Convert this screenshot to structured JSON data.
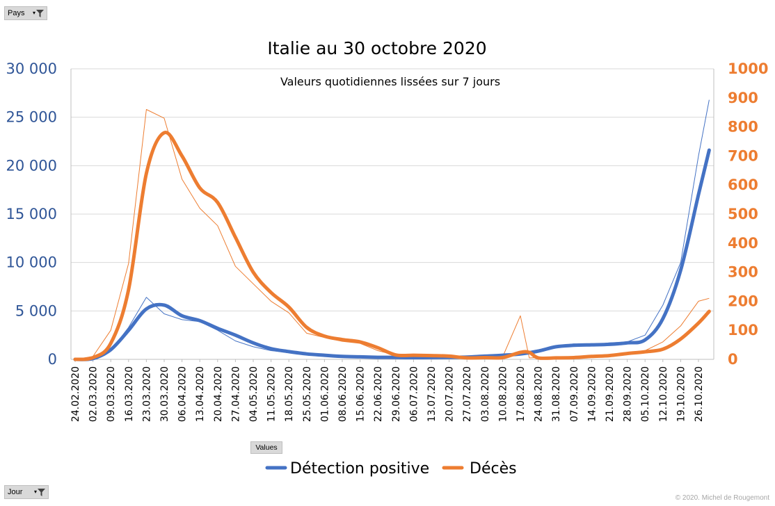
{
  "controls": {
    "pays_label": "Pays",
    "jour_label": "Jour",
    "values_label": "Values",
    "filter_icon": "filter-icon"
  },
  "copyright": "© 2020. Michel de Rougemont",
  "chart_data": {
    "type": "line",
    "title": "Italie au 30 octobre 2020",
    "subtitle": "Valeurs quotidiennes lissées sur 7 jours",
    "left_axis": {
      "range": [
        0,
        30000
      ],
      "ticks": [
        "0",
        "5 000",
        "10 000",
        "15 000",
        "20 000",
        "25 000",
        "30 000"
      ],
      "color": "#2f5597"
    },
    "right_axis": {
      "range": [
        0,
        1000
      ],
      "ticks": [
        "0",
        "100",
        "200",
        "300",
        "400",
        "500",
        "600",
        "700",
        "800",
        "900",
        "1000"
      ],
      "color": "#ed7d31"
    },
    "x_ticks": [
      "24.02.2020",
      "02.03.2020",
      "09.03.2020",
      "16.03.2020",
      "23.03.2020",
      "30.03.2020",
      "06.04.2020",
      "13.04.2020",
      "20.04.2020",
      "27.04.2020",
      "04.05.2020",
      "11.05.2020",
      "18.05.2020",
      "25.05.2020",
      "01.06.2020",
      "08.06.2020",
      "15.06.2020",
      "22.06.2020",
      "29.06.2020",
      "06.07.2020",
      "13.07.2020",
      "20.07.2020",
      "27.07.2020",
      "03.08.2020",
      "10.08.2020",
      "17.08.2020",
      "24.08.2020",
      "31.08.2020",
      "07.09.2020",
      "14.09.2020",
      "21.09.2020",
      "28.09.2020",
      "05.10.2020",
      "12.10.2020",
      "19.10.2020",
      "26.10.2020"
    ],
    "grid": true,
    "legend_position": "bottom",
    "series": [
      {
        "name": "Détection positive",
        "axis": "left",
        "color": "#4472c4",
        "smoothed_by_week": [
          [
            0,
            0
          ],
          [
            1,
            80
          ],
          [
            2,
            1000
          ],
          [
            3,
            3000
          ],
          [
            4,
            5200
          ],
          [
            5,
            5600
          ],
          [
            6,
            4500
          ],
          [
            7,
            4000
          ],
          [
            8,
            3200
          ],
          [
            9,
            2500
          ],
          [
            10,
            1700
          ],
          [
            11,
            1100
          ],
          [
            12,
            800
          ],
          [
            13,
            560
          ],
          [
            14,
            420
          ],
          [
            15,
            300
          ],
          [
            16,
            260
          ],
          [
            17,
            210
          ],
          [
            18,
            200
          ],
          [
            19,
            180
          ],
          [
            20,
            190
          ],
          [
            21,
            210
          ],
          [
            22,
            230
          ],
          [
            23,
            330
          ],
          [
            24,
            420
          ],
          [
            25,
            550
          ],
          [
            26,
            850
          ],
          [
            27,
            1300
          ],
          [
            28,
            1450
          ],
          [
            29,
            1500
          ],
          [
            30,
            1550
          ],
          [
            31,
            1700
          ],
          [
            32,
            2000
          ],
          [
            33,
            4200
          ],
          [
            34,
            9200
          ],
          [
            35,
            17000
          ],
          [
            35.6,
            21600
          ]
        ],
        "daily_by_week": [
          [
            0,
            0
          ],
          [
            1,
            150
          ],
          [
            2,
            900
          ],
          [
            3,
            3300
          ],
          [
            4,
            6400
          ],
          [
            5,
            4700
          ],
          [
            6,
            4100
          ],
          [
            7,
            3900
          ],
          [
            8,
            3000
          ],
          [
            9,
            1900
          ],
          [
            10,
            1300
          ],
          [
            11,
            900
          ],
          [
            12,
            700
          ],
          [
            13,
            500
          ],
          [
            14,
            350
          ],
          [
            15,
            270
          ],
          [
            16,
            250
          ],
          [
            17,
            200
          ],
          [
            18,
            190
          ],
          [
            19,
            170
          ],
          [
            20,
            200
          ],
          [
            21,
            250
          ],
          [
            22,
            260
          ],
          [
            23,
            380
          ],
          [
            24,
            400
          ],
          [
            25,
            650
          ],
          [
            26,
            1000
          ],
          [
            27,
            1400
          ],
          [
            28,
            1600
          ],
          [
            29,
            1500
          ],
          [
            30,
            1700
          ],
          [
            31,
            1800
          ],
          [
            32,
            2500
          ],
          [
            33,
            5600
          ],
          [
            34,
            10000
          ],
          [
            35,
            21000
          ],
          [
            35.6,
            26800
          ]
        ]
      },
      {
        "name": "Décès",
        "axis": "right",
        "color": "#ed7d31",
        "smoothed_by_week": [
          [
            0,
            0
          ],
          [
            1,
            6
          ],
          [
            2,
            55
          ],
          [
            3,
            240
          ],
          [
            4,
            640
          ],
          [
            5,
            780
          ],
          [
            6,
            700
          ],
          [
            7,
            590
          ],
          [
            8,
            540
          ],
          [
            9,
            420
          ],
          [
            10,
            300
          ],
          [
            11,
            230
          ],
          [
            12,
            180
          ],
          [
            13,
            110
          ],
          [
            14,
            80
          ],
          [
            15,
            68
          ],
          [
            16,
            60
          ],
          [
            17,
            40
          ],
          [
            18,
            15
          ],
          [
            19,
            14
          ],
          [
            20,
            13
          ],
          [
            21,
            11
          ],
          [
            22,
            5
          ],
          [
            23,
            6
          ],
          [
            24,
            6
          ],
          [
            25,
            24
          ],
          [
            25.5,
            24
          ],
          [
            26,
            5
          ],
          [
            27,
            5
          ],
          [
            28,
            6
          ],
          [
            29,
            10
          ],
          [
            30,
            13
          ],
          [
            31,
            20
          ],
          [
            32,
            26
          ],
          [
            33,
            35
          ],
          [
            34,
            70
          ],
          [
            35,
            125
          ],
          [
            35.6,
            165
          ]
        ],
        "daily_by_week": [
          [
            0,
            0
          ],
          [
            1,
            10
          ],
          [
            2,
            100
          ],
          [
            3,
            330
          ],
          [
            4,
            860
          ],
          [
            5,
            830
          ],
          [
            6,
            620
          ],
          [
            7,
            520
          ],
          [
            8,
            460
          ],
          [
            9,
            320
          ],
          [
            10,
            260
          ],
          [
            11,
            200
          ],
          [
            12,
            160
          ],
          [
            13,
            90
          ],
          [
            14,
            75
          ],
          [
            15,
            62
          ],
          [
            16,
            55
          ],
          [
            17,
            30
          ],
          [
            18,
            14
          ],
          [
            19,
            14
          ],
          [
            20,
            13
          ],
          [
            21,
            8
          ],
          [
            22,
            4
          ],
          [
            23,
            5
          ],
          [
            24,
            8
          ],
          [
            25,
            150
          ],
          [
            25.5,
            5
          ],
          [
            26,
            6
          ],
          [
            27,
            7
          ],
          [
            28,
            9
          ],
          [
            29,
            12
          ],
          [
            30,
            15
          ],
          [
            31,
            24
          ],
          [
            32,
            30
          ],
          [
            33,
            60
          ],
          [
            34,
            115
          ],
          [
            35,
            200
          ],
          [
            35.6,
            210
          ]
        ]
      }
    ]
  }
}
